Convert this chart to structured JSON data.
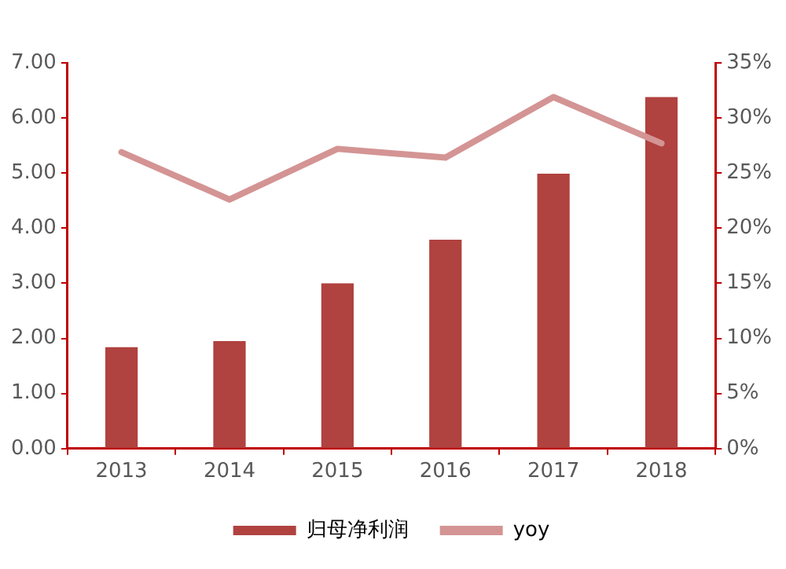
{
  "chart_data": {
    "type": "bar",
    "categories": [
      "2013",
      "2014",
      "2015",
      "2016",
      "2017",
      "2018"
    ],
    "series": [
      {
        "name": "归母净利润",
        "color": "#b0423f",
        "values": [
          1.84,
          1.95,
          3.0,
          3.79,
          4.99,
          6.38
        ]
      },
      {
        "name": "yoy",
        "type": "line",
        "axis": "y2",
        "color": "#d49494",
        "values": [
          26.9,
          22.6,
          27.2,
          26.4,
          31.9,
          27.7
        ]
      }
    ],
    "ylim": [
      0,
      7
    ],
    "yticks": [
      {
        "value": 0,
        "label": "0.00"
      },
      {
        "value": 1,
        "label": "1.00"
      },
      {
        "value": 2,
        "label": "2.00"
      },
      {
        "value": 3,
        "label": "3.00"
      },
      {
        "value": 4,
        "label": "4.00"
      },
      {
        "value": 5,
        "label": "5.00"
      },
      {
        "value": 6,
        "label": "6.00"
      },
      {
        "value": 7,
        "label": "7.00"
      }
    ],
    "y2lim": [
      0,
      35
    ],
    "y2ticks": [
      {
        "value": 0,
        "label": "0%"
      },
      {
        "value": 5,
        "label": "5%"
      },
      {
        "value": 10,
        "label": "10%"
      },
      {
        "value": 15,
        "label": "15%"
      },
      {
        "value": 20,
        "label": "20%"
      },
      {
        "value": 25,
        "label": "25%"
      },
      {
        "value": 30,
        "label": "30%"
      },
      {
        "value": 35,
        "label": "35%"
      }
    ],
    "grid": false,
    "legend": "bottom",
    "marker": "none"
  }
}
